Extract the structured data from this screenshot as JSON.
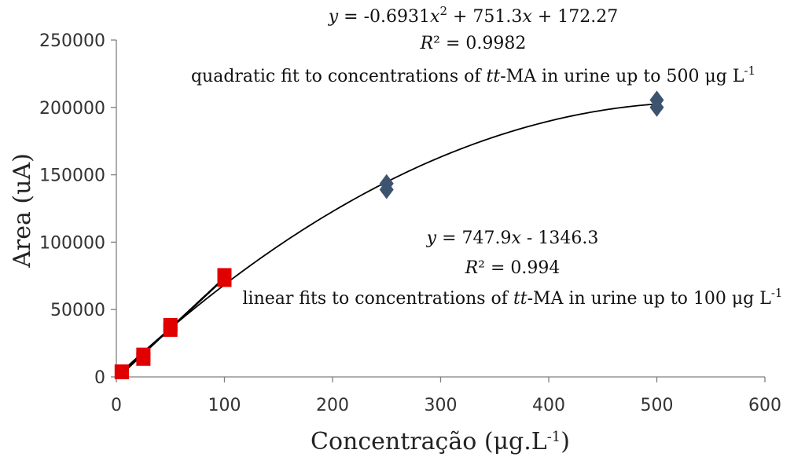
{
  "chart_data": {
    "type": "scatter",
    "xlabel": {
      "text": "Concentração (μg.L",
      "sup": "-1",
      "suffix": ")"
    },
    "ylabel": "Area (uA)",
    "xlim": [
      0,
      600
    ],
    "ylim": [
      0,
      250000
    ],
    "x_ticks": [
      0,
      100,
      200,
      300,
      400,
      500,
      600
    ],
    "y_ticks": [
      0,
      50000,
      100000,
      150000,
      200000,
      250000
    ],
    "x_tick_labels": [
      "0",
      "100",
      "200",
      "300",
      "400",
      "500",
      "600"
    ],
    "y_tick_labels": [
      "0",
      "50000",
      "100000",
      "150000",
      "200000",
      "250000"
    ],
    "grid": false,
    "series": [
      {
        "marker": "square",
        "color": "#e00000",
        "points": [
          {
            "x": 5,
            "y": 3500
          },
          {
            "x": 5,
            "y": 4000
          },
          {
            "x": 25,
            "y": 13500
          },
          {
            "x": 25,
            "y": 16500
          },
          {
            "x": 50,
            "y": 35000
          },
          {
            "x": 50,
            "y": 38500
          },
          {
            "x": 100,
            "y": 72000
          },
          {
            "x": 100,
            "y": 75500
          }
        ]
      },
      {
        "marker": "diamond",
        "color": "#3d5470",
        "points": [
          {
            "x": 250,
            "y": 139000
          },
          {
            "x": 250,
            "y": 143500
          },
          {
            "x": 500,
            "y": 200000
          },
          {
            "x": 500,
            "y": 205500
          }
        ]
      }
    ],
    "fits": [
      {
        "kind": "linear",
        "slope": 747.9,
        "intercept": -1346.3,
        "x_range": [
          5,
          100
        ]
      },
      {
        "kind": "quadratic",
        "a": -0.6931,
        "b": 751.3,
        "c": 172.27,
        "x_range": [
          5,
          500
        ]
      }
    ],
    "annotations": {
      "quadratic": {
        "eq_prefix": "y",
        "eq_rest_1": " = -0.6931",
        "eq_x1": "x",
        "eq_sup": "2",
        "eq_rest_2": " + 751.3",
        "eq_x2": "x",
        "eq_rest_3": " + 172.27",
        "r2_r": "R",
        "r2_rest": "² = 0.9982",
        "desc_1": "quadratic fit to concentrations of ",
        "desc_i": "tt",
        "desc_2": "-MA in urine up to 500 μg L",
        "desc_sup": "-1"
      },
      "linear": {
        "eq_prefix": "y",
        "eq_rest_1": " = 747.9",
        "eq_x1": "x",
        "eq_rest_2": " - 1346.3",
        "r2_r": "R",
        "r2_rest": "² = 0.994",
        "desc_1": "linear fits to concentrations of ",
        "desc_i": "tt",
        "desc_2": "-MA in urine up to 100 μg L",
        "desc_sup": "-1"
      }
    }
  }
}
